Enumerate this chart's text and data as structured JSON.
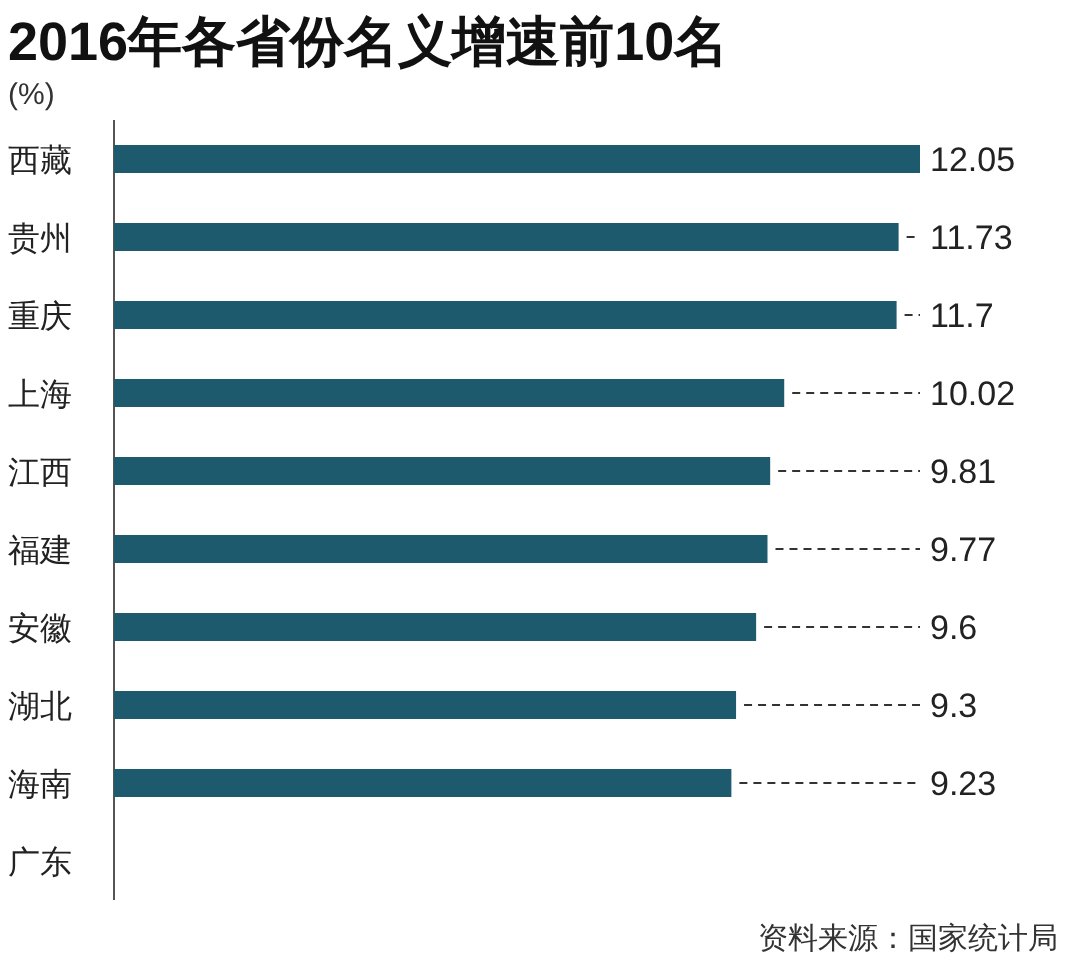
{
  "chart_data": {
    "type": "bar",
    "orientation": "horizontal",
    "title": "2016年各省份名义增速前10名",
    "ylabel": "(%)",
    "categories": [
      "西藏",
      "贵州",
      "重庆",
      "上海",
      "江西",
      "福建",
      "安徽",
      "湖北",
      "海南",
      "广东"
    ],
    "series": [
      {
        "color": "#1d5a6e",
        "values": [
          12.05,
          11.73,
          11.7,
          10.02,
          9.81,
          9.77,
          9.6,
          9.3,
          9.23,
          null
        ],
        "value_labels": [
          "12.05",
          "11.73",
          "11.7",
          "10.02",
          "9.81",
          "9.77",
          "9.6",
          "9.3",
          "9.23",
          null
        ]
      }
    ],
    "annotations": [
      "资料来源：国家统计局"
    ]
  }
}
